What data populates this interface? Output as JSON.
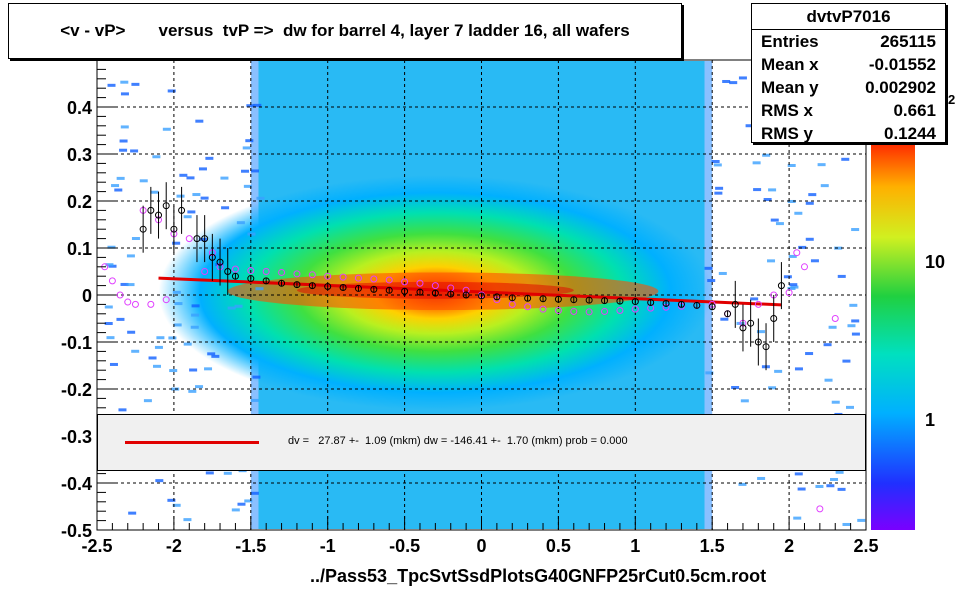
{
  "title": "<v - vP>       versus  tvP =>  dw for barrel 4, layer 7 ladder 16, all wafers",
  "footer": "../Pass53_TpcSvtSsdPlotsG40GNFP25rCut0.5cm.root",
  "stats": {
    "name": "dvtvP7016",
    "rows": [
      {
        "label": "Entries",
        "value": "265115"
      },
      {
        "label": "Mean x",
        "value": "-0.01552"
      },
      {
        "label": "Mean y",
        "value": "0.002902"
      },
      {
        "label": "RMS x",
        "value": "0.661"
      },
      {
        "label": "RMS y",
        "value": "0.1244"
      }
    ]
  },
  "fit": {
    "text": "dv =   27.87 +-  1.09 (mkm) dw = -146.41 +-  1.70 (mkm) prob = 0.000",
    "color": "#e00000"
  },
  "zaxis": {
    "labels": [
      "1",
      "10"
    ],
    "exponent_fragment": "2"
  },
  "chart_data": {
    "type": "heatmap",
    "xlim": [
      -2.5,
      2.5
    ],
    "ylim": [
      -0.5,
      0.5
    ],
    "x_ticks": [
      "-2.5",
      "-2",
      "-1.5",
      "-1",
      "-0.5",
      "0",
      "0.5",
      "1",
      "1.5",
      "2",
      "2.5"
    ],
    "y_ticks": [
      "-0.5",
      "-0.4",
      "-0.3",
      "-0.2",
      "-0.1",
      "0",
      "0.1",
      "0.2",
      "0.3",
      "0.4"
    ],
    "x_tick_values": [
      -2.5,
      -2,
      -1.5,
      -1,
      -0.5,
      0,
      0.5,
      1,
      1.5,
      2,
      2.5
    ],
    "y_tick_values": [
      -0.5,
      -0.4,
      -0.3,
      -0.2,
      -0.1,
      0,
      0.1,
      0.2,
      0.3,
      0.4
    ],
    "grid": true,
    "zscale": "log",
    "fit_line": {
      "x": [
        -2.1,
        1.95
      ],
      "y": [
        0.036,
        -0.021
      ],
      "color": "#e00000"
    },
    "profile_black": {
      "x": [
        -2.2,
        -2.15,
        -2.1,
        -2.05,
        -2.0,
        -1.95,
        -1.85,
        -1.8,
        -1.75,
        -1.7,
        -1.65,
        -1.6,
        -1.5,
        -1.4,
        -1.3,
        -1.2,
        -1.1,
        -1.0,
        -0.9,
        -0.8,
        -0.7,
        -0.6,
        -0.5,
        -0.4,
        -0.3,
        -0.2,
        -0.1,
        0.0,
        0.1,
        0.2,
        0.3,
        0.4,
        0.5,
        0.6,
        0.7,
        0.8,
        0.9,
        1.0,
        1.1,
        1.2,
        1.3,
        1.4,
        1.5,
        1.6,
        1.65,
        1.7,
        1.75,
        1.8,
        1.85,
        1.9,
        1.95
      ],
      "y": [
        0.14,
        0.18,
        0.17,
        0.19,
        0.14,
        0.18,
        0.12,
        0.12,
        0.08,
        0.07,
        0.05,
        0.04,
        0.035,
        0.03,
        0.025,
        0.022,
        0.02,
        0.018,
        0.016,
        0.014,
        0.012,
        0.01,
        0.008,
        0.006,
        0.004,
        0.002,
        0.0,
        -0.002,
        -0.004,
        -0.006,
        -0.007,
        -0.008,
        -0.009,
        -0.01,
        -0.011,
        -0.012,
        -0.013,
        -0.014,
        -0.016,
        -0.018,
        -0.02,
        -0.022,
        -0.025,
        -0.04,
        -0.02,
        -0.07,
        -0.06,
        -0.1,
        -0.11,
        -0.05,
        0.02
      ]
    },
    "profile_magenta": {
      "x": [
        -2.45,
        -2.4,
        -2.35,
        -2.3,
        -2.25,
        -2.2,
        -2.15,
        -2.1,
        -2.05,
        -2.0,
        -1.9,
        -1.8,
        -1.75,
        -1.7,
        -1.6,
        -1.5,
        -1.4,
        -1.3,
        -1.2,
        -1.1,
        -1.0,
        -0.9,
        -0.8,
        -0.7,
        -0.6,
        -0.5,
        -0.4,
        -0.3,
        -0.2,
        -0.1,
        0.0,
        0.1,
        0.2,
        0.3,
        0.4,
        0.5,
        0.6,
        0.7,
        0.8,
        0.9,
        1.0,
        1.1,
        1.2,
        1.3,
        1.4,
        1.5,
        1.6,
        1.7,
        1.8,
        1.9,
        2.0,
        2.05,
        2.1,
        2.3,
        2.2
      ],
      "y": [
        0.06,
        0.03,
        0.0,
        -0.015,
        -0.02,
        0.18,
        -0.02,
        0.16,
        -0.01,
        0.13,
        0.12,
        0.05,
        0.09,
        0.06,
        0.055,
        0.052,
        0.05,
        0.048,
        0.045,
        0.043,
        0.04,
        0.038,
        0.036,
        0.034,
        0.032,
        0.028,
        0.025,
        0.02,
        0.015,
        0.01,
        0.0,
        -0.01,
        -0.02,
        -0.025,
        -0.03,
        -0.033,
        -0.035,
        -0.036,
        -0.035,
        -0.033,
        -0.03,
        -0.028,
        -0.026,
        -0.024,
        -0.022,
        -0.02,
        -0.04,
        -0.06,
        -0.02,
        0.0,
        0.005,
        0.09,
        0.06,
        -0.05,
        -0.455
      ]
    }
  }
}
